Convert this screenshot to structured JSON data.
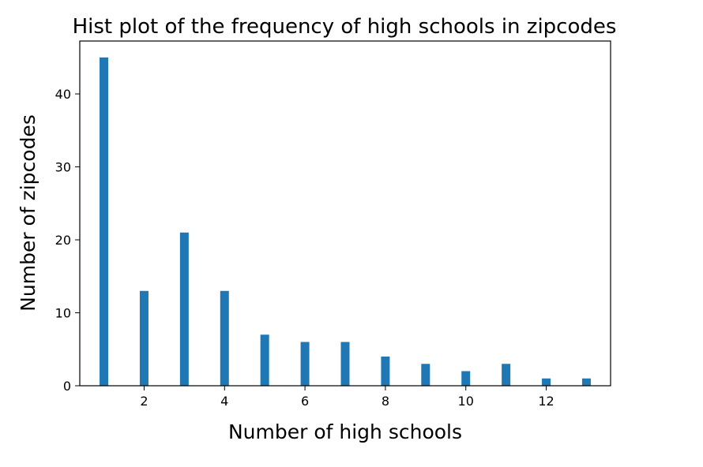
{
  "chart_data": {
    "type": "bar",
    "title": "Hist plot of the frequency of high schools in zipcodes",
    "xlabel": "Number of high schools",
    "ylabel": "Number of zipcodes",
    "x": [
      1,
      2,
      3,
      4,
      5,
      6,
      7,
      8,
      9,
      10,
      11,
      12,
      13
    ],
    "values": [
      45,
      13,
      21,
      13,
      7,
      6,
      6,
      4,
      3,
      2,
      3,
      1,
      1
    ],
    "xlim": [
      0.4,
      13.6
    ],
    "ylim": [
      0,
      47.25
    ],
    "xticks": [
      "2",
      "4",
      "6",
      "8",
      "10",
      "12"
    ],
    "yticks": [
      "0",
      "10",
      "20",
      "30",
      "40"
    ],
    "bar_color": "#1f77b4",
    "grid": false
  }
}
